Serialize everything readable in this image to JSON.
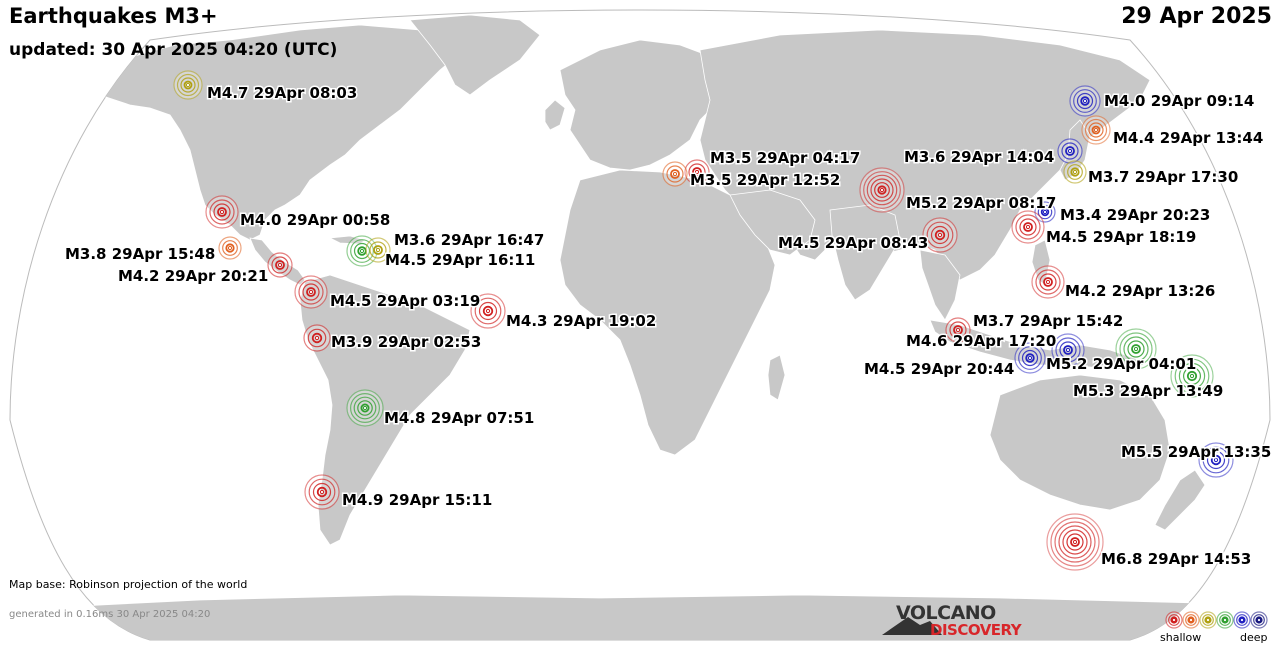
{
  "header": {
    "title": "Earthquakes M3+",
    "updated": "updated: 30 Apr 2025 04:20 (UTC)",
    "date": "29 Apr 2025"
  },
  "footer": {
    "map_base": "Map base: Robinson projection of the world",
    "generated": "generated in 0.16ms 30 Apr 2025 04:20"
  },
  "logo": {
    "line1": "VOLCANO",
    "line2": "DISCOVERY"
  },
  "legend": {
    "shallow_label": "shallow",
    "deep_label": "deep",
    "depth_colors": [
      "#d02020",
      "#e06020",
      "#b0a010",
      "#30a030",
      "#2020c0",
      "#1a1a80"
    ]
  },
  "colors": {
    "land": "#c8c8c8",
    "sea": "#ffffff",
    "border": "#ffffff"
  },
  "quakes": [
    {
      "label": "M4.7 29Apr 08:03",
      "color": "#b0a010"
    },
    {
      "label": "M4.0 29Apr 09:14",
      "color": "#2020c0"
    },
    {
      "label": "M4.4 29Apr 13:44",
      "color": "#e06020"
    },
    {
      "label": "M3.5 29Apr 04:17",
      "color": "#d02020"
    },
    {
      "label": "M3.5 29Apr 12:52",
      "color": "#e06020"
    },
    {
      "label": "M3.6 29Apr 14:04",
      "color": "#2020c0"
    },
    {
      "label": "M3.7 29Apr 17:30",
      "color": "#b0a010"
    },
    {
      "label": "M5.2 29Apr 08:17",
      "color": "#d02020"
    },
    {
      "label": "M3.4 29Apr 20:23",
      "color": "#2020c0"
    },
    {
      "label": "M4.5 29Apr 18:19",
      "color": "#d02020"
    },
    {
      "label": "M4.5 29Apr 08:43",
      "color": "#d02020"
    },
    {
      "label": "M4.0 29Apr 00:58",
      "color": "#d02020"
    },
    {
      "label": "M3.8 29Apr 15:48",
      "color": "#e06020"
    },
    {
      "label": "M4.2 29Apr 20:21",
      "color": "#d02020"
    },
    {
      "label": "M3.6 29Apr 16:47",
      "color": "#30a030"
    },
    {
      "label": "M4.5 29Apr 16:11",
      "color": "#b0a010"
    },
    {
      "label": "M4.5 29Apr 03:19",
      "color": "#d02020"
    },
    {
      "label": "M4.3 29Apr 19:02",
      "color": "#d02020"
    },
    {
      "label": "M3.9 29Apr 02:53",
      "color": "#d02020"
    },
    {
      "label": "M4.2 29Apr 13:26",
      "color": "#d02020"
    },
    {
      "label": "M3.7 29Apr 15:42",
      "color": "#d02020"
    },
    {
      "label": "M4.6 29Apr 17:20",
      "color": "#2020c0"
    },
    {
      "label": "M5.2 29Apr 04:01",
      "color": "#30a030"
    },
    {
      "label": "M4.5 29Apr 20:44",
      "color": "#2020c0"
    },
    {
      "label": "M5.3 29Apr 13:49",
      "color": "#30a030"
    },
    {
      "label": "M4.8 29Apr 07:51",
      "color": "#30a030"
    },
    {
      "label": "M5.5 29Apr 13:35",
      "color": "#2020c0"
    },
    {
      "label": "M4.9 29Apr 15:11",
      "color": "#d02020"
    },
    {
      "label": "M6.8 29Apr 14:53",
      "color": "#d02020"
    }
  ]
}
